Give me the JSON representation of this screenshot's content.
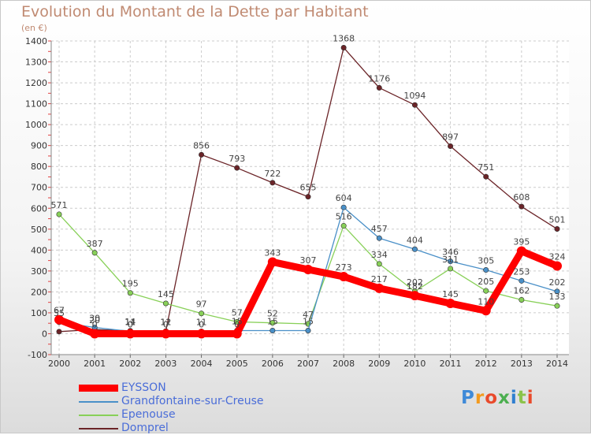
{
  "chart_data": {
    "type": "line",
    "title": "Evolution du Montant de la Dette par Habitant",
    "subtitle": "(en €)",
    "x": [
      "2000",
      "2001",
      "2002",
      "2003",
      "2004",
      "2005",
      "2006",
      "2007",
      "2008",
      "2009",
      "2010",
      "2011",
      "2012",
      "2013",
      "2014"
    ],
    "y_ticks": [
      -100,
      0,
      100,
      200,
      300,
      400,
      500,
      600,
      700,
      800,
      900,
      1000,
      1100,
      1200,
      1300,
      1400
    ],
    "ylim": [
      -100,
      1400
    ],
    "grid": true,
    "series": [
      {
        "name": "EYSSON",
        "color": "#ff0000",
        "values": [
          67,
          0,
          0,
          0,
          0,
          0,
          343,
          307,
          273,
          217,
          182,
          145,
          110,
          395,
          324
        ],
        "labels": [
          "67",
          "0",
          "0",
          "0",
          "0",
          "0",
          "343",
          "307",
          "273",
          "217",
          "182",
          "145",
          "110",
          "395",
          "324"
        ]
      },
      {
        "name": "Grandfontaine-sur-Creuse",
        "color": "#4a90c8",
        "values": [
          55,
          30,
          11,
          11,
          11,
          15,
          15,
          15,
          604,
          457,
          404,
          346,
          305,
          253,
          202
        ],
        "labels": [
          "55",
          "30",
          "11",
          "11",
          "11",
          "15",
          "15",
          "15",
          "604",
          "457",
          "404",
          "346",
          "305",
          "253",
          "202"
        ]
      },
      {
        "name": "Epenouse",
        "color": "#88d058",
        "values": [
          571,
          387,
          195,
          145,
          97,
          57,
          52,
          47,
          516,
          334,
          202,
          311,
          205,
          162,
          133
        ],
        "labels": [
          "571",
          "387",
          "195",
          "145",
          "97",
          "57",
          "52",
          "47",
          "516",
          "334",
          "202",
          "311",
          "205",
          "162",
          "133"
        ]
      },
      {
        "name": "Domprel",
        "color": "#6b2428",
        "values": [
          10,
          20,
          14,
          12,
          856,
          793,
          722,
          655,
          1368,
          1176,
          1094,
          897,
          751,
          608,
          501
        ],
        "labels": [
          "",
          "20",
          "14",
          "12",
          "856",
          "793",
          "722",
          "655",
          "1368",
          "1176",
          "1094",
          "897",
          "751",
          "608",
          "501"
        ]
      }
    ]
  },
  "legend": [
    {
      "label": "EYSSON",
      "color": "#ff0000"
    },
    {
      "label": "Grandfontaine-sur-Creuse",
      "color": "#4a90c8"
    },
    {
      "label": "Epenouse",
      "color": "#88d058"
    },
    {
      "label": "Domprel",
      "color": "#6b2428"
    }
  ],
  "logo": {
    "text": "Proxiti",
    "colors": [
      "#3f8ad8",
      "#f39a1e",
      "#e94a2b",
      "#4caf50",
      "#2f7fd0",
      "#8bc34a",
      "#e94a2b"
    ]
  }
}
